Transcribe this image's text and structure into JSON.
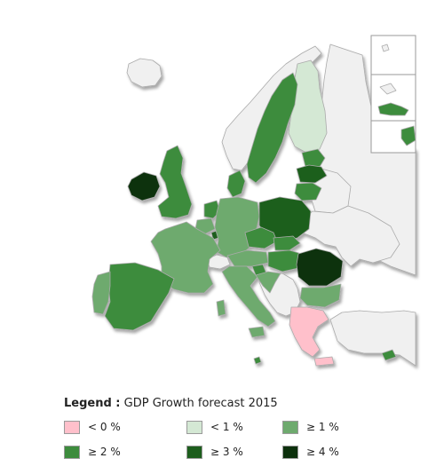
{
  "legend": {
    "heading": "Legend :",
    "subtitle": "GDP Growth forecast 2015",
    "classes": [
      {
        "label": "< 0 %",
        "color": "#ffc0cb"
      },
      {
        "label": "< 1 %",
        "color": "#d4e8d4"
      },
      {
        "label": "≥ 1 %",
        "color": "#6eaa6e"
      },
      {
        "label": "≥ 2 %",
        "color": "#3d8c3d"
      },
      {
        "label": "≥ 3 %",
        "color": "#1d5e1d"
      },
      {
        "label": "≥ 4 %",
        "color": "#0c300c"
      }
    ]
  },
  "colors": {
    "non_member": "#f0f0f0",
    "border": "#aaaaaa"
  },
  "regions": [
    {
      "name": "iceland",
      "class": null
    },
    {
      "name": "norway",
      "class": null
    },
    {
      "name": "sweden",
      "class": 3
    },
    {
      "name": "finland",
      "class": 1
    },
    {
      "name": "estonia",
      "class": 3
    },
    {
      "name": "latvia",
      "class": 4
    },
    {
      "name": "lithuania",
      "class": 3
    },
    {
      "name": "denmark",
      "class": 3
    },
    {
      "name": "ireland",
      "class": 5
    },
    {
      "name": "united-kingdom",
      "class": 3
    },
    {
      "name": "netherlands",
      "class": 3
    },
    {
      "name": "belgium",
      "class": 2
    },
    {
      "name": "luxembourg",
      "class": 4
    },
    {
      "name": "germany",
      "class": 2
    },
    {
      "name": "poland",
      "class": 4
    },
    {
      "name": "czech-republic",
      "class": 3
    },
    {
      "name": "slovakia",
      "class": 3
    },
    {
      "name": "hungary",
      "class": 3
    },
    {
      "name": "austria",
      "class": 2
    },
    {
      "name": "switzerland",
      "class": null
    },
    {
      "name": "france",
      "class": 2
    },
    {
      "name": "spain",
      "class": 3
    },
    {
      "name": "portugal",
      "class": 2
    },
    {
      "name": "italy",
      "class": 2
    },
    {
      "name": "slovenia",
      "class": 3
    },
    {
      "name": "croatia",
      "class": 2
    },
    {
      "name": "romania",
      "class": 5
    },
    {
      "name": "bulgaria",
      "class": 2
    },
    {
      "name": "greece",
      "class": 0
    },
    {
      "name": "cyprus",
      "class": 3
    },
    {
      "name": "malta",
      "class": 3
    },
    {
      "name": "balkans",
      "class": null
    },
    {
      "name": "belarus",
      "class": null
    },
    {
      "name": "ukraine",
      "class": null
    },
    {
      "name": "russia",
      "class": null
    },
    {
      "name": "turkey",
      "class": null
    },
    {
      "name": "canary-islands",
      "class": 3
    }
  ]
}
